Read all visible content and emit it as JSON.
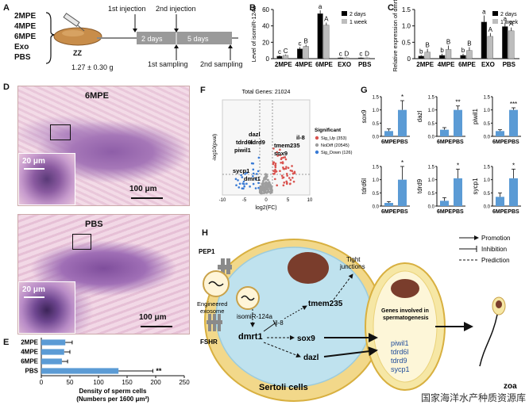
{
  "panelA": {
    "label": "A",
    "groups": [
      "2MPE",
      "4MPE",
      "6MPE",
      "Exo",
      "PBS"
    ],
    "fish_label": "ZZ",
    "weight": "1.27 ± 0.30 g",
    "first_injection": "1st injection",
    "second_injection": "2nd injection",
    "period1": "2 days",
    "period2": "5 days",
    "first_sampling": "1st sampling",
    "second_sampling": "2nd sampling"
  },
  "panelB": {
    "label": "B",
    "chart_data": {
      "type": "bar",
      "categories": [
        "2MPE",
        "4MPE",
        "6MPE",
        "EXO",
        "PBS"
      ],
      "ylabel": "Level of isomiR-124a",
      "ylim": [
        0,
        60
      ],
      "yticks": [
        0,
        20,
        40,
        60
      ],
      "series": [
        {
          "name": "2 days",
          "color": "#000000",
          "values": [
            3,
            12,
            55,
            1,
            1
          ],
          "errors": [
            1,
            2,
            4,
            0.5,
            0.5
          ],
          "letters": [
            "c",
            "c",
            "a",
            "c",
            "c"
          ]
        },
        {
          "name": "1 week",
          "color": "#bdbdbd",
          "values": [
            4,
            15,
            41,
            1,
            1
          ],
          "errors": [
            1,
            2,
            3,
            0.5,
            0.5
          ],
          "letters": [
            "C",
            "B",
            "A",
            "D",
            "D"
          ]
        }
      ]
    }
  },
  "panelC": {
    "label": "C",
    "chart_data": {
      "type": "bar",
      "categories": [
        "2MPE",
        "4MPE",
        "6MPE",
        "EXO",
        "PBS"
      ],
      "ylabel": "Relative expression of dmrt1",
      "ylim": [
        0,
        1.5
      ],
      "yticks": [
        0,
        0.5,
        1.0,
        1.5
      ],
      "ytick_labels": [
        "0",
        "0.5",
        "1.0",
        "1.5"
      ],
      "series": [
        {
          "name": "2 days",
          "color": "#000000",
          "values": [
            0.08,
            0.1,
            0.1,
            1.12,
            0.98
          ],
          "errors": [
            0.03,
            0.05,
            0.05,
            0.2,
            0.12
          ],
          "letters": [
            "b",
            "b",
            "b",
            "a",
            "a"
          ]
        },
        {
          "name": "1 week",
          "color": "#bdbdbd",
          "values": [
            0.2,
            0.28,
            0.25,
            0.68,
            0.85
          ],
          "errors": [
            0.1,
            0.12,
            0.1,
            0.1,
            0.1
          ],
          "letters": [
            "B",
            "B",
            "B",
            "A",
            "A"
          ]
        }
      ]
    }
  },
  "panelD": {
    "label": "D",
    "top_title": "6MPE",
    "bottom_title": "PBS",
    "inset_scale": "20 μm",
    "main_scale": "100 μm"
  },
  "panelE": {
    "label": "E",
    "chart_data": {
      "type": "bar",
      "orientation": "horizontal",
      "categories": [
        "2MPE",
        "4MPE",
        "6MPE",
        "PBS"
      ],
      "values": [
        42,
        40,
        36,
        135
      ],
      "errors": [
        12,
        10,
        10,
        60
      ],
      "xlim": [
        0,
        250
      ],
      "xticks": [
        0,
        50,
        100,
        150,
        200,
        250
      ],
      "xlabel": "Density of sperm cells",
      "xlabel2": "(Numbers per 1600 μm²)",
      "significance": "**",
      "color": "#5b9bd5"
    }
  },
  "panelF": {
    "label": "F",
    "chart_data": {
      "type": "scatter",
      "title": "Total Genes: 21024",
      "xlabel": "log2(FC)",
      "ylabel": "-log10(pval)",
      "xticks": [
        "-10",
        "-5",
        "0",
        "5",
        "10"
      ],
      "legend_title": "Significant",
      "legend": [
        {
          "name": "Sig_Up (353)",
          "color": "#d9534f"
        },
        {
          "name": "NoDiff (20545)",
          "color": "#9e9e9e"
        },
        {
          "name": "Sig_Down (126)",
          "color": "#3a7bd5"
        }
      ],
      "gene_labels": [
        "dazl",
        "tdrd6l",
        "tdrd9",
        "piwil1",
        "sycp1",
        "dmrt1",
        "tmem235",
        "sox9",
        "il-8"
      ]
    }
  },
  "panelG": {
    "label": "G",
    "chart_data": [
      {
        "type": "bar",
        "ylabel": "sox9",
        "categories": [
          "6MPE",
          "PBS"
        ],
        "values": [
          0.2,
          1.0
        ],
        "errors": [
          0.08,
          0.35
        ],
        "ylim": [
          0,
          1.5
        ],
        "yticks": [
          "0.0",
          "0.5",
          "1.0",
          "1.5"
        ],
        "sig": "*"
      },
      {
        "type": "bar",
        "ylabel": "dazl",
        "categories": [
          "6MPE",
          "PBS"
        ],
        "values": [
          0.25,
          1.0
        ],
        "errors": [
          0.08,
          0.15
        ],
        "ylim": [
          0,
          1.5
        ],
        "yticks": [
          "0.0",
          "0.5",
          "1.0",
          "1.5"
        ],
        "sig": "**"
      },
      {
        "type": "bar",
        "ylabel": "piwil1",
        "categories": [
          "6MPE",
          "PBS"
        ],
        "values": [
          0.2,
          1.0
        ],
        "errors": [
          0.05,
          0.08
        ],
        "ylim": [
          0,
          1.5
        ],
        "yticks": [
          "0.0",
          "0.5",
          "1.0",
          "1.5"
        ],
        "sig": "***"
      },
      {
        "type": "bar",
        "ylabel": "tdrd6l",
        "categories": [
          "6MPE",
          "PBS"
        ],
        "values": [
          0.12,
          1.0
        ],
        "errors": [
          0.05,
          0.5
        ],
        "ylim": [
          0,
          1.5
        ],
        "yticks": [
          "0.0",
          "0.5",
          "1.0",
          "1.5"
        ],
        "sig": "*"
      },
      {
        "type": "bar",
        "ylabel": "tdrd9",
        "categories": [
          "6MPE",
          "PBS"
        ],
        "values": [
          0.2,
          1.05
        ],
        "errors": [
          0.12,
          0.35
        ],
        "ylim": [
          0,
          1.5
        ],
        "yticks": [
          "0.0",
          "0.5",
          "1.0",
          "1.5"
        ],
        "sig": "*"
      },
      {
        "type": "bar",
        "ylabel": "sycp1",
        "categories": [
          "6MPE",
          "PBS"
        ],
        "values": [
          0.35,
          1.05
        ],
        "errors": [
          0.15,
          0.35
        ],
        "ylim": [
          0,
          1.5
        ],
        "yticks": [
          "0.0",
          "0.5",
          "1.0",
          "1.5"
        ],
        "sig": "*"
      }
    ]
  },
  "panelH": {
    "label": "H",
    "pep1": "PEP1",
    "engineered": "Engineered",
    "exosome": "exosome",
    "fshr": "FSHR",
    "isomir": "isomiR-124a",
    "il8": "il-8",
    "dmrt1": "dmrt1",
    "sox9": "sox9",
    "dazl": "dazl",
    "tmem235": "tmem235",
    "tight1": "Tight",
    "tight2": "junctions",
    "sertoli": "Sertoli cells",
    "genes_title1": "Genes involved in",
    "genes_title2": "spermatogenesis",
    "genes": [
      "piwil1",
      "tdrd6l",
      "tdrd9",
      "sycp1"
    ],
    "legend": [
      "Promotion",
      "Inhibition",
      "Prediction"
    ],
    "zoa": "zoa"
  },
  "watermark": "国家海洋水产种质资源库"
}
